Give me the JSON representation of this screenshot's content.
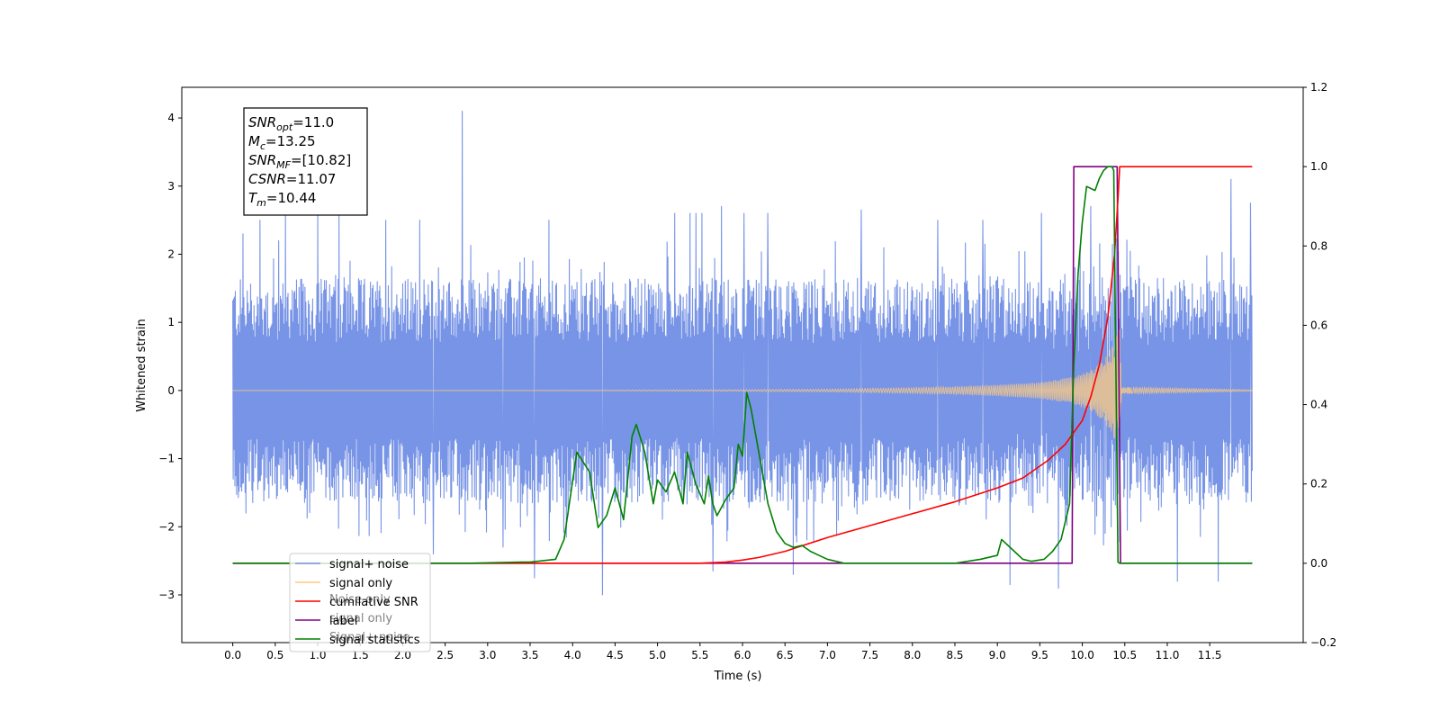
{
  "chart_data": {
    "type": "line",
    "xlabel": "Time (s)",
    "ylabel": "Whitened strain",
    "xlim": [
      -0.6,
      12.6
    ],
    "ylim": [
      -3.7,
      4.45
    ],
    "y2lim": [
      -0.2,
      1.2
    ],
    "x_ticks": [
      "0.0",
      "0.5",
      "1.0",
      "1.5",
      "2.0",
      "2.5",
      "3.0",
      "3.5",
      "4.0",
      "4.5",
      "5.0",
      "5.5",
      "6.0",
      "6.5",
      "7.0",
      "7.5",
      "8.0",
      "8.5",
      "9.0",
      "9.5",
      "10.0",
      "10.5",
      "11.0",
      "11.5"
    ],
    "y_ticks": [
      "4",
      "3",
      "2",
      "1",
      "0",
      "−1",
      "−2",
      "−3"
    ],
    "y2_ticks": [
      "1.2",
      "1.0",
      "0.8",
      "0.6",
      "0.4",
      "0.2",
      "0.0",
      "−0.2"
    ],
    "annotation": {
      "lines": [
        {
          "label": "SNR",
          "sub": "opt",
          "value": "=11.0"
        },
        {
          "label": "M",
          "sub": "c",
          "value": "=13.25"
        },
        {
          "label": "SNR",
          "sub": "MF",
          "value": "=[10.82]"
        },
        {
          "label": "CSNR",
          "sub": "",
          "value": "=11.07"
        },
        {
          "label": "T",
          "sub": "m",
          "value": "=10.44"
        }
      ]
    },
    "legend": {
      "position": "lower-left",
      "entries": [
        {
          "label": "signal+ noise",
          "color": "#7894e6"
        },
        {
          "label": "signal only",
          "color": "#ffcc80"
        },
        {
          "label": "cumilative SNR",
          "color": "#ff0000"
        },
        {
          "label": "label",
          "color": "#800080"
        },
        {
          "label": "signal statistics",
          "color": "#008000"
        }
      ],
      "hidden_text": [
        "Noise only",
        "signal only",
        "Signal+ noise"
      ]
    },
    "series": [
      {
        "name": "signal+ noise",
        "axis": "left",
        "color": "#7894e6",
        "x_range": [
          0.0,
          12.0
        ],
        "envelope_typical": 1.7,
        "peaks": [
          [
            0.12,
            2.3
          ],
          [
            0.32,
            2.5
          ],
          [
            0.62,
            2.6
          ],
          [
            1.0,
            2.6
          ],
          [
            1.25,
            2.6
          ],
          [
            1.8,
            2.5
          ],
          [
            2.2,
            2.5
          ],
          [
            2.36,
            -2.4
          ],
          [
            2.7,
            4.1
          ],
          [
            3.18,
            -2.3
          ],
          [
            3.55,
            -2.75
          ],
          [
            3.72,
            2.5
          ],
          [
            4.35,
            -3.0
          ],
          [
            5.2,
            2.6
          ],
          [
            5.38,
            2.6
          ],
          [
            5.45,
            2.6
          ],
          [
            5.52,
            2.6
          ],
          [
            5.65,
            -2.65
          ],
          [
            5.75,
            2.7
          ],
          [
            6.02,
            2.6
          ],
          [
            6.3,
            2.6
          ],
          [
            6.6,
            -2.7
          ],
          [
            7.4,
            2.65
          ],
          [
            8.3,
            2.5
          ],
          [
            8.83,
            2.5
          ],
          [
            9.15,
            -2.85
          ],
          [
            9.52,
            2.6
          ],
          [
            9.72,
            -2.9
          ],
          [
            10.1,
            2.7
          ],
          [
            11.12,
            -2.8
          ],
          [
            11.6,
            -2.8
          ],
          [
            11.75,
            3.1
          ],
          [
            11.98,
            2.75
          ]
        ]
      },
      {
        "name": "signal only",
        "axis": "left",
        "color": "#ffcc80",
        "note": "chirp amplitude growing toward merger",
        "amplitude": [
          [
            0.0,
            0.0
          ],
          [
            2.0,
            0.002
          ],
          [
            4.0,
            0.005
          ],
          [
            6.0,
            0.012
          ],
          [
            7.0,
            0.02
          ],
          [
            8.0,
            0.04
          ],
          [
            8.5,
            0.055
          ],
          [
            9.0,
            0.08
          ],
          [
            9.5,
            0.12
          ],
          [
            9.9,
            0.2
          ],
          [
            10.1,
            0.3
          ],
          [
            10.25,
            0.45
          ],
          [
            10.35,
            0.65
          ],
          [
            10.44,
            0.9
          ],
          [
            10.46,
            0.05
          ],
          [
            12.0,
            0.01
          ]
        ]
      },
      {
        "name": "cumilative SNR",
        "axis": "right",
        "color": "#ff0000",
        "x": [
          0.0,
          5.5,
          5.8,
          6.0,
          6.2,
          6.5,
          7.0,
          7.5,
          8.0,
          8.5,
          9.0,
          9.3,
          9.6,
          9.8,
          10.0,
          10.1,
          10.2,
          10.3,
          10.38,
          10.42,
          10.44,
          10.5,
          12.0
        ],
        "y": [
          0.0,
          0.0,
          0.003,
          0.008,
          0.015,
          0.03,
          0.065,
          0.095,
          0.125,
          0.155,
          0.19,
          0.215,
          0.26,
          0.3,
          0.36,
          0.42,
          0.5,
          0.62,
          0.78,
          0.92,
          1.0,
          1.0,
          1.0
        ]
      },
      {
        "name": "label",
        "axis": "right",
        "color": "#800080",
        "x": [
          0.0,
          9.88,
          9.9,
          10.41,
          10.45,
          12.0
        ],
        "y": [
          0.0,
          0.0,
          1.0,
          1.0,
          0.0,
          0.0
        ]
      },
      {
        "name": "signal statistics",
        "axis": "right",
        "color": "#008000",
        "x": [
          0.0,
          2.8,
          3.4,
          3.5,
          3.8,
          3.9,
          4.05,
          4.2,
          4.3,
          4.4,
          4.5,
          4.6,
          4.7,
          4.75,
          4.85,
          4.95,
          5.0,
          5.1,
          5.2,
          5.3,
          5.35,
          5.45,
          5.55,
          5.6,
          5.65,
          5.7,
          5.8,
          5.9,
          5.95,
          6.0,
          6.05,
          6.1,
          6.2,
          6.3,
          6.4,
          6.5,
          6.6,
          6.7,
          6.8,
          6.9,
          7.0,
          7.2,
          8.5,
          8.8,
          9.0,
          9.05,
          9.2,
          9.3,
          9.4,
          9.55,
          9.65,
          9.75,
          9.85,
          9.9,
          9.95,
          10.0,
          10.05,
          10.15,
          10.2,
          10.25,
          10.3,
          10.35,
          10.37,
          10.42,
          10.44,
          10.5,
          12.0
        ],
        "y": [
          0.0,
          0.0,
          0.003,
          0.003,
          0.01,
          0.06,
          0.28,
          0.23,
          0.09,
          0.12,
          0.19,
          0.11,
          0.32,
          0.35,
          0.28,
          0.15,
          0.21,
          0.18,
          0.23,
          0.15,
          0.28,
          0.2,
          0.15,
          0.22,
          0.15,
          0.12,
          0.16,
          0.19,
          0.3,
          0.27,
          0.43,
          0.39,
          0.27,
          0.15,
          0.08,
          0.05,
          0.04,
          0.045,
          0.03,
          0.02,
          0.01,
          0.0,
          0.0,
          0.01,
          0.02,
          0.06,
          0.03,
          0.01,
          0.005,
          0.01,
          0.03,
          0.06,
          0.15,
          0.5,
          0.73,
          0.86,
          0.95,
          0.94,
          0.97,
          0.99,
          1.0,
          1.0,
          0.99,
          0.003,
          0.0,
          0.0,
          0.0
        ]
      }
    ]
  }
}
